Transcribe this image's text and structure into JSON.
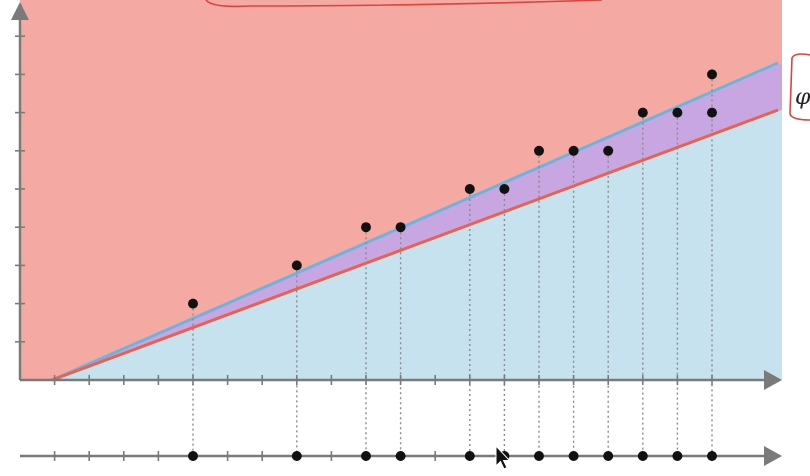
{
  "diagram": {
    "colors": {
      "above_region": "#f4aaa3",
      "below_region": "#c6e2ee",
      "between_region": "#c8a6e2",
      "upper_line": "#6cb4dd",
      "lower_line": "#ea6150",
      "axis": "#7a7a7a",
      "point": "#111111",
      "dotted": "#8a8a8a",
      "annotation": "#e0413b"
    },
    "annotation_symbol": "φ",
    "points": [
      {
        "x": 5,
        "y": 2
      },
      {
        "x": 8,
        "y": 3
      },
      {
        "x": 10,
        "y": 4
      },
      {
        "x": 11,
        "y": 4
      },
      {
        "x": 13,
        "y": 5
      },
      {
        "x": 14,
        "y": 5
      },
      {
        "x": 15,
        "y": 6
      },
      {
        "x": 16,
        "y": 6
      },
      {
        "x": 17,
        "y": 6
      },
      {
        "x": 18,
        "y": 7
      },
      {
        "x": 19,
        "y": 7
      },
      {
        "x": 20,
        "y": 7
      },
      {
        "x": 20,
        "y": 8
      }
    ],
    "number_line_points": [
      5,
      8,
      10,
      11,
      13,
      14,
      15,
      16,
      17,
      18,
      19,
      20
    ]
  }
}
